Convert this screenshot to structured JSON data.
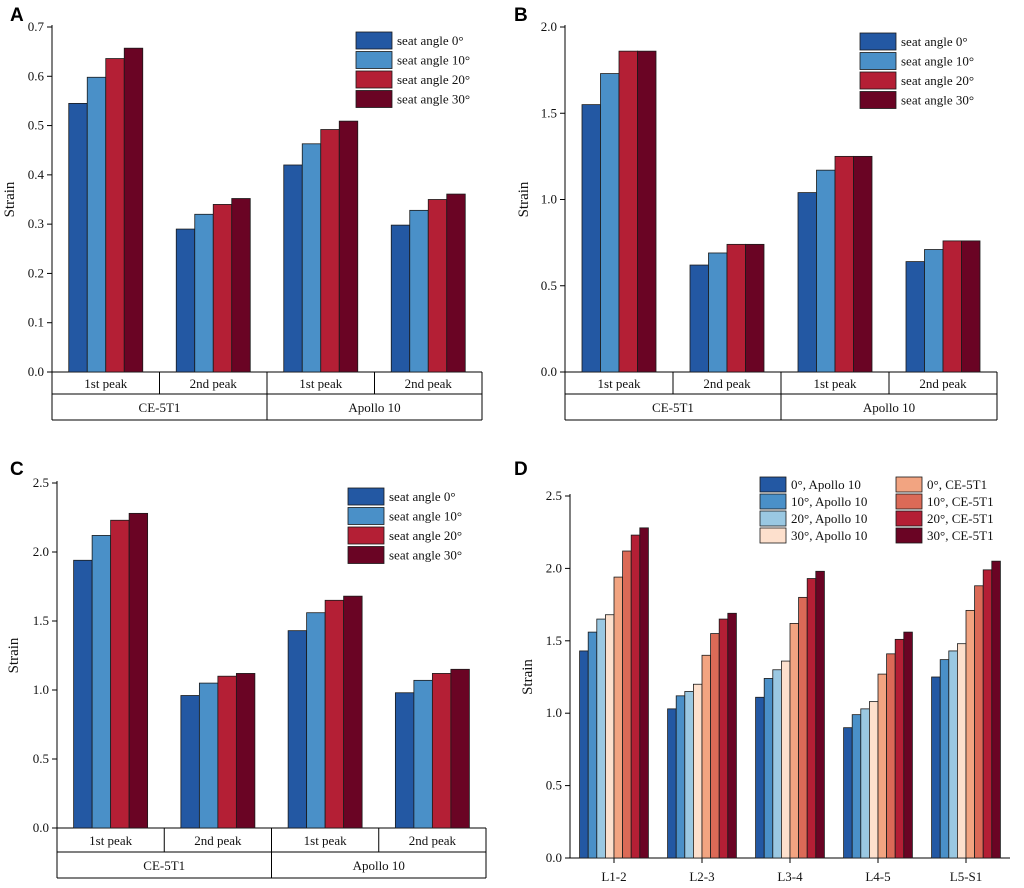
{
  "colors": {
    "c0": "#2358a3",
    "c10": "#4a90c8",
    "c20": "#b41f35",
    "c30": "#6a0424",
    "d_apollo": [
      "#2358a3",
      "#4a90c8",
      "#9ac8e2",
      "#fde0cd"
    ],
    "d_ce": [
      "#f2a481",
      "#db6a57",
      "#b41f35",
      "#6a0424"
    ]
  },
  "chart_data": [
    {
      "panel": "A",
      "type": "bar",
      "ylabel": "Strain",
      "ylim": [
        0,
        0.7
      ],
      "yticks": [
        "0.0",
        "0.1",
        "0.2",
        "0.3",
        "0.4",
        "0.5",
        "0.6",
        "0.7"
      ],
      "categories": [
        "1st peak",
        "2nd peak",
        "1st peak",
        "2nd peak"
      ],
      "groups": [
        "CE-5T1",
        "Apollo 10"
      ],
      "legend_position": "top-right",
      "series": [
        {
          "name": "seat angle 0°",
          "values": [
            0.545,
            0.29,
            0.42,
            0.298
          ]
        },
        {
          "name": "seat angle 10°",
          "values": [
            0.598,
            0.32,
            0.463,
            0.328
          ]
        },
        {
          "name": "seat angle 20°",
          "values": [
            0.636,
            0.34,
            0.492,
            0.35
          ]
        },
        {
          "name": "seat angle 30°",
          "values": [
            0.657,
            0.352,
            0.509,
            0.361
          ]
        }
      ]
    },
    {
      "panel": "B",
      "type": "bar",
      "ylabel": "Strain",
      "ylim": [
        0,
        2.0
      ],
      "yticks": [
        "0.0",
        "0.5",
        "1.0",
        "1.5",
        "2.0"
      ],
      "categories": [
        "1st peak",
        "2nd peak",
        "1st peak",
        "2nd peak"
      ],
      "groups": [
        "CE-5T1",
        "Apollo 10"
      ],
      "legend_position": "top-right",
      "series": [
        {
          "name": "seat angle 0°",
          "values": [
            1.55,
            0.62,
            1.04,
            0.64
          ]
        },
        {
          "name": "seat angle 10°",
          "values": [
            1.73,
            0.69,
            1.17,
            0.71
          ]
        },
        {
          "name": "seat angle 20°",
          "values": [
            1.86,
            0.74,
            1.25,
            0.76
          ]
        },
        {
          "name": "seat angle 30°",
          "values": [
            1.86,
            0.74,
            1.25,
            0.76
          ]
        }
      ]
    },
    {
      "panel": "C",
      "type": "bar",
      "ylabel": "Strain",
      "ylim": [
        0,
        2.5
      ],
      "yticks": [
        "0.0",
        "0.5",
        "1.0",
        "1.5",
        "2.0",
        "2.5"
      ],
      "categories": [
        "1st peak",
        "2nd peak",
        "1st peak",
        "2nd peak"
      ],
      "groups": [
        "CE-5T1",
        "Apollo 10"
      ],
      "legend_position": "top-right",
      "series": [
        {
          "name": "seat angle 0°",
          "values": [
            1.94,
            0.96,
            1.43,
            0.98
          ]
        },
        {
          "name": "seat angle 10°",
          "values": [
            2.12,
            1.05,
            1.56,
            1.07
          ]
        },
        {
          "name": "seat angle 20°",
          "values": [
            2.23,
            1.1,
            1.65,
            1.12
          ]
        },
        {
          "name": "seat angle 30°",
          "values": [
            2.28,
            1.12,
            1.68,
            1.15
          ]
        }
      ]
    },
    {
      "panel": "D",
      "type": "bar",
      "ylabel": "Strain",
      "ylim": [
        0,
        2.5
      ],
      "yticks": [
        "0.0",
        "0.5",
        "1.0",
        "1.5",
        "2.0",
        "2.5"
      ],
      "categories": [
        "L1-2",
        "L2-3",
        "L3-4",
        "L4-5",
        "L5-S1"
      ],
      "legend_position": "top-right",
      "series": [
        {
          "name": "0°,  Apollo 10",
          "values": [
            1.43,
            1.03,
            1.11,
            0.9,
            1.25
          ]
        },
        {
          "name": "10°,  Apollo 10",
          "values": [
            1.56,
            1.12,
            1.24,
            0.99,
            1.37
          ]
        },
        {
          "name": "20°,  Apollo 10",
          "values": [
            1.65,
            1.15,
            1.3,
            1.03,
            1.43
          ]
        },
        {
          "name": "30°,  Apollo 10",
          "values": [
            1.68,
            1.2,
            1.36,
            1.08,
            1.48
          ]
        },
        {
          "name": "0°,  CE-5T1",
          "values": [
            1.94,
            1.4,
            1.62,
            1.27,
            1.71
          ]
        },
        {
          "name": "10°,  CE-5T1",
          "values": [
            2.12,
            1.55,
            1.8,
            1.41,
            1.88
          ]
        },
        {
          "name": "20°,  CE-5T1",
          "values": [
            2.23,
            1.65,
            1.93,
            1.51,
            1.99
          ]
        },
        {
          "name": "30°,  CE-5T1",
          "values": [
            2.28,
            1.69,
            1.98,
            1.56,
            2.05
          ]
        }
      ]
    }
  ]
}
